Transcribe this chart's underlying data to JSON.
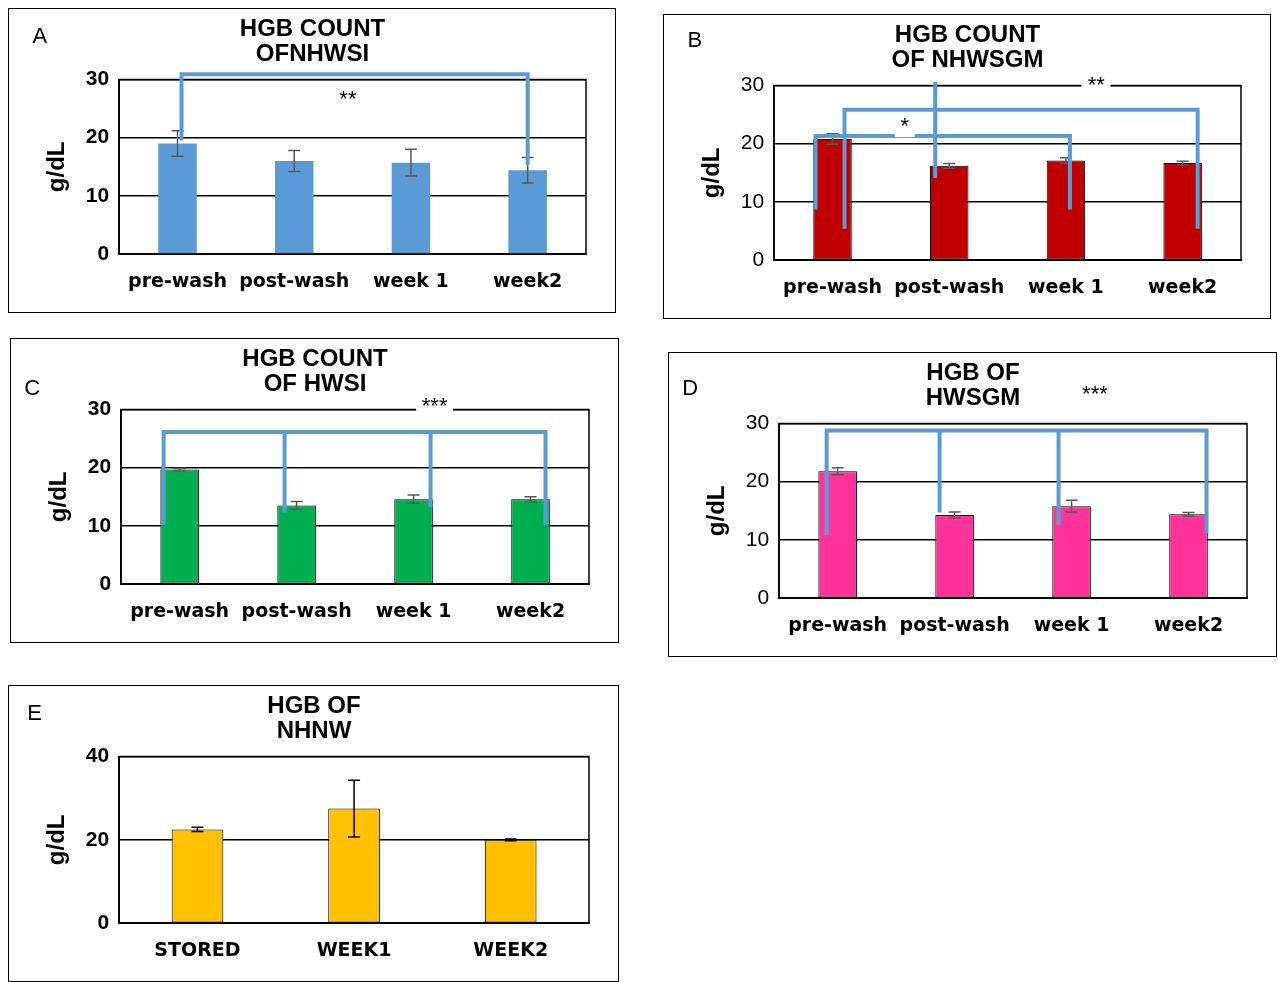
{
  "chart_data": [
    {
      "type": "bar",
      "title": "HGB COUNT\nOFNHWSI",
      "ylabel": "g/dL",
      "categories": [
        "pre-wash",
        "post-wash",
        "week 1",
        "week2"
      ],
      "values": [
        19,
        16,
        15.7,
        14.4
      ],
      "errors": [
        2.2,
        1.8,
        2.3,
        2.2
      ],
      "color": "#5b9bd5",
      "ylim": [
        0,
        30
      ],
      "yticks": [
        0,
        10,
        20,
        30
      ],
      "grid": "y",
      "annotations": [
        "A",
        "**"
      ]
    },
    {
      "type": "bar",
      "title": "HGB COUNT\nOF NHWSGM",
      "ylabel": "g/dL",
      "categories": [
        "pre-wash",
        "post-wash",
        "week 1",
        "week2"
      ],
      "values": [
        20.8,
        16.2,
        17.1,
        16.7
      ],
      "errors": [
        0.9,
        0.4,
        0.5,
        0.3
      ],
      "color": "#c00000",
      "ylim": [
        0,
        30
      ],
      "yticks": [
        0,
        10,
        20,
        30
      ],
      "grid": "y",
      "annotations": [
        "B",
        "*",
        "**"
      ]
    },
    {
      "type": "bar",
      "title": "HGB COUNT\nOF HWSI",
      "ylabel": "g/dL",
      "categories": [
        "pre-wash",
        "post-wash",
        "week 1",
        "week2"
      ],
      "values": [
        19.7,
        13.5,
        14.6,
        14.6
      ],
      "errors": [
        0.2,
        0.7,
        0.7,
        0.4
      ],
      "color": "#00b050",
      "ylim": [
        0,
        30
      ],
      "yticks": [
        0,
        10,
        20,
        30
      ],
      "grid": "y",
      "annotations": [
        "C",
        "***"
      ]
    },
    {
      "type": "bar",
      "title": "HGB OF\nHWSGM",
      "ylabel": "g/dL",
      "categories": [
        "pre-wash",
        "post-wash",
        "week 1",
        "week2"
      ],
      "values": [
        21.8,
        14.3,
        15.8,
        14.4
      ],
      "errors": [
        0.6,
        0.5,
        1.0,
        0.3
      ],
      "color": "#ff3399",
      "ylim": [
        0,
        30
      ],
      "yticks": [
        0,
        10,
        20,
        30
      ],
      "grid": "y",
      "annotations": [
        "D",
        "***"
      ]
    },
    {
      "type": "bar",
      "title": "HGB OF\nNHNW",
      "ylabel": "g/dL",
      "categories": [
        "STORED",
        "WEEK1",
        "WEEK2"
      ],
      "values": [
        22.5,
        27.5,
        20
      ],
      "errors": [
        0.5,
        6.8,
        0.2
      ],
      "color": "#ffc000",
      "ylim": [
        0,
        40
      ],
      "yticks": [
        0,
        20,
        40
      ],
      "grid": "y",
      "annotations": [
        "E"
      ]
    }
  ]
}
